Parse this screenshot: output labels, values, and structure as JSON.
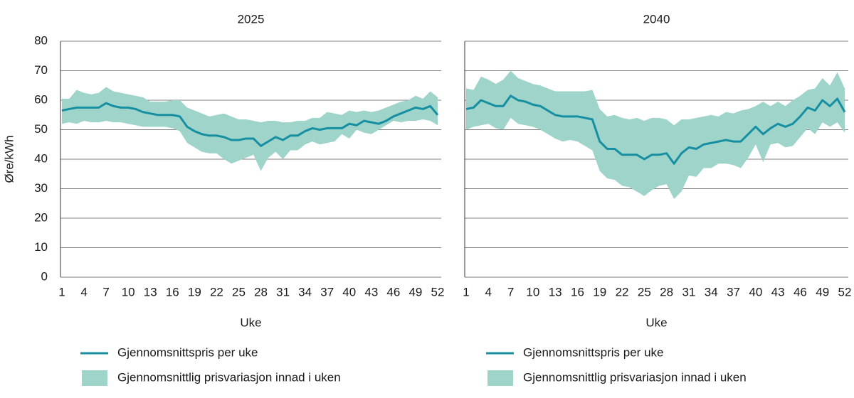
{
  "chart_data": [
    {
      "type": "line",
      "title": "2025",
      "xlabel": "Uke",
      "ylabel": "Øre/kWh",
      "x": [
        1,
        2,
        3,
        4,
        5,
        6,
        7,
        8,
        9,
        10,
        11,
        12,
        13,
        14,
        15,
        16,
        17,
        18,
        19,
        20,
        21,
        22,
        23,
        24,
        25,
        26,
        27,
        28,
        29,
        30,
        31,
        32,
        33,
        34,
        35,
        36,
        37,
        38,
        39,
        40,
        41,
        42,
        43,
        44,
        45,
        46,
        47,
        48,
        49,
        50,
        51,
        52
      ],
      "xlim": [
        1,
        52
      ],
      "xticks": [
        1,
        4,
        7,
        10,
        13,
        16,
        19,
        22,
        25,
        28,
        31,
        34,
        37,
        40,
        43,
        46,
        49,
        52
      ],
      "ylim": [
        0,
        80
      ],
      "yticks": [
        0,
        10,
        20,
        30,
        40,
        50,
        60,
        70,
        80
      ],
      "show_ytick_labels": true,
      "grid": true,
      "series": [
        {
          "name": "Gjennomsnittspris per uke",
          "color": "#168fa1",
          "style": "line",
          "values": [
            56.5,
            57,
            57.5,
            57.5,
            57.5,
            57.5,
            59,
            58,
            57.5,
            57.5,
            57,
            56,
            55.5,
            55,
            55,
            55,
            54.5,
            51,
            49.5,
            48.5,
            48,
            48,
            47.5,
            46.5,
            46.5,
            47,
            47,
            44.5,
            46,
            47.5,
            46.5,
            48,
            48,
            49.5,
            50.5,
            50,
            50.5,
            50.5,
            50.5,
            52,
            51.5,
            53,
            52.5,
            52,
            53,
            54.5,
            55.5,
            56.5,
            57.5,
            57,
            58,
            55
          ]
        },
        {
          "name": "Gjennomsnittlig prisvariasjon innad i uken",
          "color": "#9fd4cb",
          "style": "band",
          "upper": [
            60.5,
            60.5,
            63.5,
            62.5,
            62,
            62.5,
            64.5,
            63,
            62.5,
            62,
            61.5,
            61,
            59.5,
            59.5,
            59.5,
            60,
            60,
            57.5,
            56.5,
            55.5,
            54.5,
            55,
            55.5,
            54.5,
            53.5,
            53.5,
            53,
            52.5,
            53,
            53,
            52.5,
            52.5,
            53,
            53,
            54,
            54,
            56,
            55.5,
            55,
            56.5,
            56,
            56.5,
            56,
            56.5,
            57.5,
            58.5,
            59.5,
            60,
            61.5,
            60.5,
            63,
            61
          ],
          "lower": [
            52,
            52.5,
            52,
            53,
            52.5,
            52.5,
            53,
            52.5,
            52.5,
            52,
            51.5,
            51,
            51,
            51,
            51,
            50.5,
            49.5,
            45.5,
            44,
            42.5,
            42,
            42,
            40,
            38.5,
            39.5,
            40.5,
            41.5,
            36,
            40.5,
            42.5,
            40,
            43,
            43,
            45,
            46,
            45,
            45.5,
            46,
            48.5,
            47,
            50,
            49,
            48.5,
            50,
            51.5,
            53,
            52.5,
            53,
            53,
            53.5,
            53,
            51.5
          ]
        }
      ]
    },
    {
      "type": "line",
      "title": "2040",
      "xlabel": "Uke",
      "x": [
        1,
        2,
        3,
        4,
        5,
        6,
        7,
        8,
        9,
        10,
        11,
        12,
        13,
        14,
        15,
        16,
        17,
        18,
        19,
        20,
        21,
        22,
        23,
        24,
        25,
        26,
        27,
        28,
        29,
        30,
        31,
        32,
        33,
        34,
        35,
        36,
        37,
        38,
        39,
        40,
        41,
        42,
        43,
        44,
        45,
        46,
        47,
        48,
        49,
        50,
        51,
        52
      ],
      "xlim": [
        1,
        52
      ],
      "xticks": [
        1,
        4,
        7,
        10,
        13,
        16,
        19,
        22,
        25,
        28,
        31,
        34,
        37,
        40,
        43,
        46,
        49,
        52
      ],
      "ylim": [
        0,
        80
      ],
      "yticks": [
        0,
        10,
        20,
        30,
        40,
        50,
        60,
        70,
        80
      ],
      "show_ytick_labels": false,
      "grid": true,
      "series": [
        {
          "name": "Gjennomsnittspris per uke",
          "color": "#168fa1",
          "style": "line",
          "values": [
            57,
            57.5,
            60,
            59,
            58,
            58,
            61.5,
            60,
            59.5,
            58.5,
            58,
            56.5,
            55,
            54.5,
            54.5,
            54.5,
            54,
            53.5,
            46,
            43.5,
            43.5,
            41.5,
            41.5,
            41.5,
            40,
            41.5,
            41.5,
            42,
            38.5,
            42,
            44,
            43.5,
            45,
            45.5,
            46,
            46.5,
            46,
            46,
            48.5,
            51,
            48.5,
            50.5,
            52,
            51,
            52,
            54.5,
            57.5,
            56.5,
            60,
            58,
            60.5,
            56
          ]
        },
        {
          "name": "Gjennomsnittlig prisvariasjon innad i uken",
          "color": "#9fd4cb",
          "style": "band",
          "upper": [
            64,
            63.5,
            68,
            67,
            65.5,
            67,
            70,
            67.5,
            66.5,
            65.5,
            65,
            64,
            63,
            63,
            63,
            63,
            63,
            63.5,
            57,
            54.5,
            55,
            54,
            53.5,
            54,
            53,
            54,
            54,
            53.5,
            51.5,
            53.5,
            53.5,
            54,
            54.5,
            55,
            54.5,
            56,
            55.5,
            56.5,
            57,
            58,
            59.5,
            58,
            59.5,
            58,
            60,
            61.5,
            63.5,
            64,
            67.5,
            65,
            69.5,
            64
          ],
          "lower": [
            50,
            51,
            51.5,
            52,
            50.5,
            50,
            54,
            52,
            51.5,
            51,
            50,
            48.5,
            47,
            46,
            46.5,
            46,
            44.5,
            43,
            36,
            33.5,
            33,
            31,
            30.5,
            29,
            27.5,
            29.5,
            31,
            31.5,
            26.5,
            29,
            34.5,
            34,
            37,
            37,
            38.5,
            38.5,
            38,
            37,
            40.5,
            45,
            39,
            45,
            45.5,
            44,
            44.5,
            47.5,
            50.5,
            48.5,
            52.5,
            51,
            52.5,
            49
          ]
        }
      ]
    }
  ]
}
